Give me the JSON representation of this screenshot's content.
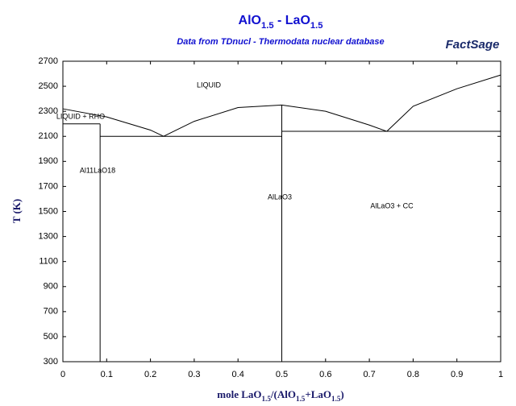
{
  "chart_data": {
    "type": "line",
    "title": "AlO1.5 - LaO1.5",
    "subtitle": "Data from TDnucl - Thermodata nuclear database",
    "logo": "FactSage",
    "x_label": "mole LaO1.5/(AlO1.5+LaO1.5)",
    "y_label": "T (K)",
    "xlim": [
      0,
      1
    ],
    "ylim": [
      300,
      2700
    ],
    "xticks": [
      0,
      0.1,
      0.2,
      0.3,
      0.4,
      0.5,
      0.6,
      0.7,
      0.8,
      0.9,
      1
    ],
    "yticks": [
      300,
      500,
      700,
      900,
      1100,
      1300,
      1500,
      1700,
      1900,
      2100,
      2300,
      2500,
      2700
    ],
    "annotations": [
      "LIQUID",
      "LIQUID + RHO",
      "Al11LaO18",
      "AlLaO3",
      "AlLaO3 + CC"
    ],
    "series": [
      {
        "color": "#000000",
        "x": [
          0,
          0.1,
          0.2,
          0.23,
          0.3,
          0.4,
          0.5,
          0.6,
          0.7,
          0.74,
          0.8,
          0.9,
          1
        ],
        "values": [
          2320,
          2255,
          2150,
          2100,
          2220,
          2330,
          2350,
          2300,
          2190,
          2140,
          2340,
          2480,
          2590
        ]
      },
      {
        "color": "#000000",
        "x": [
          0,
          0.085
        ],
        "values": [
          2200,
          2200
        ]
      },
      {
        "color": "#000000",
        "x": [
          0.085,
          0.085
        ],
        "values": [
          2200,
          300
        ]
      },
      {
        "color": "#000000",
        "x": [
          0.085,
          0.5
        ],
        "values": [
          2100,
          2100
        ]
      },
      {
        "color": "#000000",
        "x": [
          0.5,
          0.5
        ],
        "values": [
          2350,
          300
        ]
      },
      {
        "color": "#000000",
        "x": [
          0.5,
          1
        ],
        "values": [
          2140,
          2140
        ]
      }
    ]
  }
}
